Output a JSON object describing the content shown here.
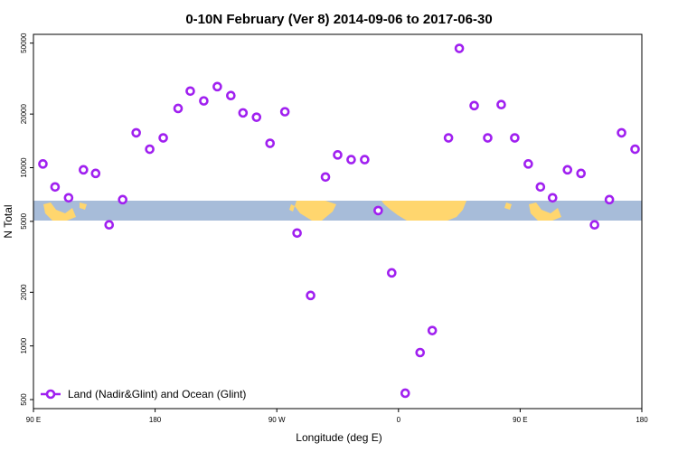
{
  "chart_data": {
    "type": "scatter",
    "title": "0-10N February (Ver 8)   2014-09-06 to 2017-06-30",
    "x_label": "Longitude (deg E)",
    "y_label": "N Total",
    "log_y": true,
    "legend": "bottomleft",
    "xlim": [
      90,
      540
    ],
    "ylim": [
      445,
      56000
    ],
    "xticks": [
      {
        "value": 90,
        "label": "90 E"
      },
      {
        "value": 180,
        "label": "180"
      },
      {
        "value": 270,
        "label": "90 W"
      },
      {
        "value": 360,
        "label": "0"
      },
      {
        "value": 450,
        "label": "90 E"
      },
      {
        "value": 540,
        "label": "180"
      }
    ],
    "yticks": [
      500,
      1000,
      2000,
      5000,
      10000,
      20000,
      50000
    ],
    "x": [
      97,
      106,
      116,
      127,
      136,
      146,
      156,
      166,
      176,
      186,
      197,
      206,
      216,
      226,
      236,
      245,
      255,
      265,
      276,
      285,
      295,
      306,
      315,
      325,
      335,
      345,
      355,
      365,
      376,
      385,
      397,
      405,
      416,
      426,
      436,
      446,
      456,
      465,
      474,
      485,
      495,
      505,
      516,
      525,
      535
    ],
    "series": [
      {
        "name": "Land (Nadir&Glint) and Ocean (Glint)",
        "color": "#a020f0",
        "values": [
          10500,
          7800,
          6780,
          9730,
          9290,
          4780,
          6620,
          15700,
          12700,
          14700,
          21500,
          26900,
          23700,
          28500,
          25400,
          20300,
          19200,
          13700,
          20600,
          4300,
          1920,
          8870,
          11800,
          11100,
          11100,
          5750,
          2570,
          543,
          918,
          1220,
          14700,
          46700,
          22300,
          14700,
          22600,
          14700,
          10500,
          7800,
          6780,
          9730,
          9290,
          4780,
          6620,
          15700,
          12700
        ]
      }
    ]
  }
}
